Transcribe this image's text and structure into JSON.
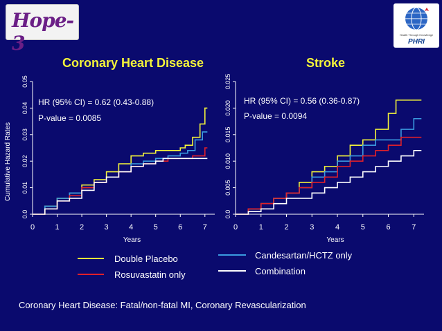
{
  "logos": {
    "left_text": "Hope-3",
    "right_text": "PHRI",
    "right_tagline": "Health Through Knowledge"
  },
  "chart_data": [
    {
      "type": "line",
      "title": "Coronary Heart Disease",
      "xlabel": "Years",
      "ylabel": "Cumulative Hazard Rates",
      "xlim": [
        0,
        7.4
      ],
      "ylim": [
        0,
        0.05
      ],
      "xticks": [
        "0",
        "1",
        "2",
        "3",
        "4",
        "5",
        "6",
        "7"
      ],
      "yticks": [
        "0.0",
        "0.01",
        "0.02",
        "0.03",
        "0.04",
        "0.05"
      ],
      "hr_text": "HR (95% CI) = 0.62 (0.43-0.88)",
      "p_text": "P-value = 0.0085",
      "series": [
        {
          "name": "Double Placebo",
          "color": "#f4f43a",
          "x": [
            0,
            0.5,
            1,
            1.5,
            2,
            2.5,
            3,
            3.5,
            4,
            4.5,
            5,
            5.5,
            6,
            6.2,
            6.5,
            6.8,
            7.0,
            7.1
          ],
          "y": [
            0,
            0.003,
            0.006,
            0.008,
            0.011,
            0.013,
            0.016,
            0.019,
            0.022,
            0.023,
            0.024,
            0.024,
            0.025,
            0.026,
            0.029,
            0.034,
            0.04,
            0.04
          ]
        },
        {
          "name": "Candesartan/HCTZ only",
          "color": "#3b9be0",
          "x": [
            0,
            0.5,
            1,
            1.5,
            2,
            2.5,
            3,
            3.5,
            4,
            4.5,
            5,
            5.5,
            6,
            6.3,
            6.6,
            6.9,
            7.1
          ],
          "y": [
            0,
            0.003,
            0.006,
            0.008,
            0.01,
            0.012,
            0.014,
            0.016,
            0.019,
            0.02,
            0.021,
            0.022,
            0.023,
            0.024,
            0.028,
            0.031,
            0.031
          ]
        },
        {
          "name": "Rosuvastatin only",
          "color": "#e0202a",
          "x": [
            0,
            0.5,
            1,
            1.5,
            2,
            2.5,
            3,
            3.5,
            4,
            4.5,
            5,
            5.5,
            6,
            6.5,
            7.0,
            7.1
          ],
          "y": [
            0,
            0.002,
            0.005,
            0.007,
            0.01,
            0.012,
            0.014,
            0.016,
            0.018,
            0.019,
            0.02,
            0.021,
            0.021,
            0.022,
            0.025,
            0.025
          ]
        },
        {
          "name": "Combination",
          "color": "#ffffff",
          "x": [
            0,
            0.5,
            1,
            1.5,
            2,
            2.5,
            3,
            3.5,
            4,
            4.5,
            5,
            5.3,
            6,
            7.1
          ],
          "y": [
            0,
            0.002,
            0.005,
            0.006,
            0.009,
            0.012,
            0.014,
            0.016,
            0.018,
            0.019,
            0.02,
            0.021,
            0.021,
            0.021
          ]
        }
      ]
    },
    {
      "type": "line",
      "title": "Stroke",
      "xlabel": "Years",
      "ylabel": "",
      "xlim": [
        0,
        7.4
      ],
      "ylim": [
        0,
        0.025
      ],
      "xticks": [
        "0",
        "1",
        "2",
        "3",
        "4",
        "5",
        "6",
        "7"
      ],
      "yticks": [
        "0.0",
        "0.005",
        "0.010",
        "0.015",
        "0.020",
        "0.025"
      ],
      "hr_text": "HR (95% CI) = 0.56 (0.36-0.87)",
      "p_text": "P-value = 0.0094",
      "series": [
        {
          "name": "Double Placebo",
          "color": "#f4f43a",
          "x": [
            0,
            0.5,
            1,
            1.5,
            2,
            2.5,
            3,
            3.5,
            4,
            4.5,
            5,
            5.5,
            6,
            6.3,
            7.3
          ],
          "y": [
            0,
            0.001,
            0.002,
            0.003,
            0.004,
            0.006,
            0.008,
            0.009,
            0.011,
            0.013,
            0.014,
            0.016,
            0.019,
            0.0215,
            0.0215
          ]
        },
        {
          "name": "Candesartan/HCTZ only",
          "color": "#3b9be0",
          "x": [
            0,
            0.5,
            1,
            1.5,
            2,
            2.5,
            3,
            3.5,
            4,
            4.5,
            5,
            5.5,
            6,
            6.5,
            7.0,
            7.3
          ],
          "y": [
            0,
            0.001,
            0.002,
            0.003,
            0.004,
            0.005,
            0.007,
            0.008,
            0.01,
            0.011,
            0.013,
            0.014,
            0.014,
            0.016,
            0.018,
            0.018
          ]
        },
        {
          "name": "Rosuvastatin only",
          "color": "#e0202a",
          "x": [
            0,
            0.5,
            1,
            1.5,
            2,
            2.5,
            3,
            3.5,
            4,
            4.5,
            5,
            5.5,
            6,
            6.5,
            7.3
          ],
          "y": [
            0,
            0.001,
            0.002,
            0.003,
            0.004,
            0.005,
            0.006,
            0.007,
            0.009,
            0.01,
            0.011,
            0.012,
            0.013,
            0.0145,
            0.0145
          ]
        },
        {
          "name": "Combination",
          "color": "#ffffff",
          "x": [
            0,
            0.5,
            1,
            1.5,
            2,
            2.5,
            3,
            3.5,
            4,
            4.5,
            5,
            5.5,
            6,
            6.5,
            7.0,
            7.3
          ],
          "y": [
            0,
            0.0005,
            0.001,
            0.002,
            0.003,
            0.003,
            0.004,
            0.005,
            0.006,
            0.007,
            0.008,
            0.009,
            0.01,
            0.011,
            0.012,
            0.012
          ]
        }
      ]
    }
  ],
  "legend": [
    {
      "label": "Double Placebo",
      "color": "#f4f43a"
    },
    {
      "label": "Rosuvastatin only",
      "color": "#e0202a"
    },
    {
      "label": "Candesartan/HCTZ only",
      "color": "#3b9be0"
    },
    {
      "label": "Combination",
      "color": "#ffffff"
    }
  ],
  "footnote": "Coronary Heart Disease: Fatal/non-fatal MI, Coronary Revascularization"
}
